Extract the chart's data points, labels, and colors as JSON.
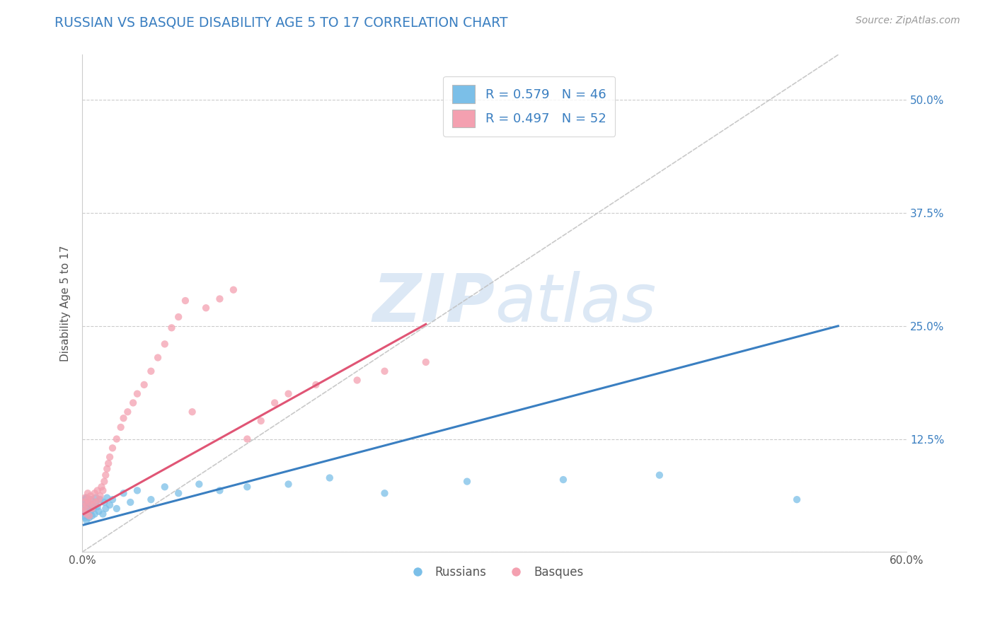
{
  "title": "RUSSIAN VS BASQUE DISABILITY AGE 5 TO 17 CORRELATION CHART",
  "source": "Source: ZipAtlas.com",
  "ylabel": "Disability Age 5 to 17",
  "xlim": [
    0.0,
    0.6
  ],
  "ylim": [
    0.0,
    0.55
  ],
  "ytick_positions": [
    0.0,
    0.125,
    0.25,
    0.375,
    0.5
  ],
  "ytick_labels": [
    "",
    "12.5%",
    "25.0%",
    "37.5%",
    "50.0%"
  ],
  "russian_R": 0.579,
  "russian_N": 46,
  "basque_R": 0.497,
  "basque_N": 52,
  "russian_color": "#7bbfe8",
  "basque_color": "#f4a0b0",
  "russian_line_color": "#3a7fc1",
  "basque_line_color": "#e05575",
  "ref_line_color": "#c0c0c0",
  "watermark_text": "ZIPatlas",
  "watermark_color": "#dce8f5",
  "russians_x": [
    0.001,
    0.001,
    0.002,
    0.002,
    0.002,
    0.003,
    0.003,
    0.003,
    0.004,
    0.004,
    0.005,
    0.005,
    0.006,
    0.006,
    0.007,
    0.007,
    0.008,
    0.009,
    0.01,
    0.01,
    0.011,
    0.012,
    0.013,
    0.015,
    0.016,
    0.017,
    0.018,
    0.02,
    0.022,
    0.025,
    0.03,
    0.035,
    0.04,
    0.05,
    0.06,
    0.07,
    0.085,
    0.1,
    0.12,
    0.15,
    0.18,
    0.22,
    0.28,
    0.35,
    0.42,
    0.52
  ],
  "russians_y": [
    0.04,
    0.045,
    0.038,
    0.052,
    0.058,
    0.035,
    0.048,
    0.06,
    0.042,
    0.055,
    0.038,
    0.05,
    0.045,
    0.058,
    0.04,
    0.052,
    0.048,
    0.042,
    0.055,
    0.06,
    0.05,
    0.045,
    0.058,
    0.042,
    0.055,
    0.048,
    0.06,
    0.052,
    0.058,
    0.048,
    0.065,
    0.055,
    0.068,
    0.058,
    0.072,
    0.065,
    0.075,
    0.068,
    0.072,
    0.075,
    0.082,
    0.065,
    0.078,
    0.08,
    0.085,
    0.058
  ],
  "basques_x": [
    0.001,
    0.001,
    0.002,
    0.002,
    0.003,
    0.003,
    0.004,
    0.004,
    0.005,
    0.005,
    0.006,
    0.007,
    0.007,
    0.008,
    0.009,
    0.01,
    0.011,
    0.012,
    0.013,
    0.014,
    0.015,
    0.016,
    0.017,
    0.018,
    0.019,
    0.02,
    0.022,
    0.025,
    0.028,
    0.03,
    0.033,
    0.037,
    0.04,
    0.045,
    0.05,
    0.055,
    0.06,
    0.065,
    0.07,
    0.075,
    0.08,
    0.09,
    0.1,
    0.11,
    0.12,
    0.13,
    0.14,
    0.15,
    0.17,
    0.2,
    0.22,
    0.25
  ],
  "basques_y": [
    0.045,
    0.055,
    0.048,
    0.06,
    0.042,
    0.052,
    0.058,
    0.065,
    0.04,
    0.055,
    0.062,
    0.048,
    0.058,
    0.052,
    0.065,
    0.055,
    0.068,
    0.058,
    0.062,
    0.072,
    0.068,
    0.078,
    0.085,
    0.092,
    0.098,
    0.105,
    0.115,
    0.125,
    0.138,
    0.148,
    0.155,
    0.165,
    0.175,
    0.185,
    0.2,
    0.215,
    0.23,
    0.248,
    0.26,
    0.278,
    0.155,
    0.27,
    0.28,
    0.29,
    0.125,
    0.145,
    0.165,
    0.175,
    0.185,
    0.19,
    0.2,
    0.21
  ],
  "russian_line_x": [
    0.001,
    0.55
  ],
  "russian_line_y": [
    0.03,
    0.25
  ],
  "basque_line_x": [
    0.001,
    0.25
  ],
  "basque_line_y": [
    0.042,
    0.252
  ]
}
